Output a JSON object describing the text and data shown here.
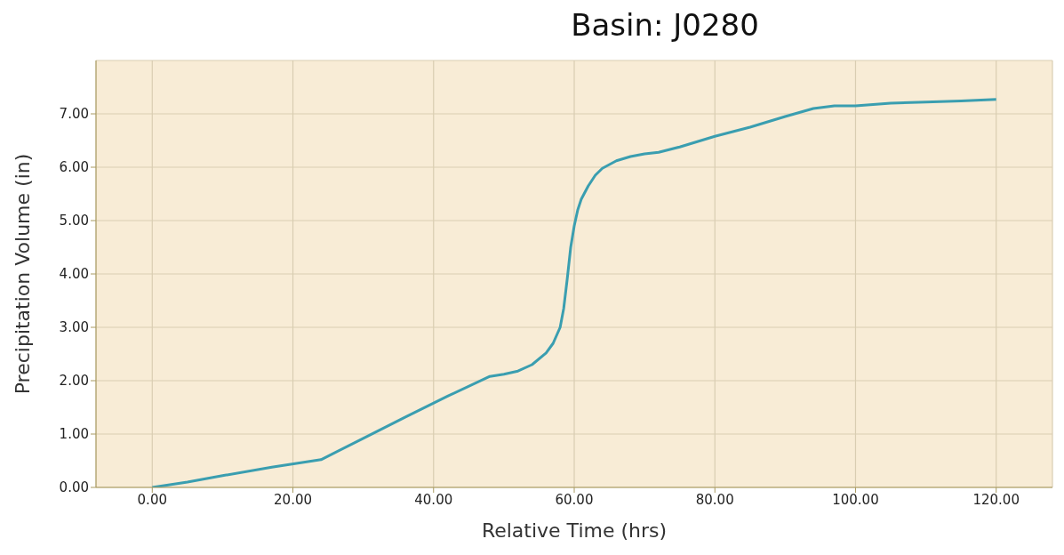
{
  "chart_data": {
    "type": "line",
    "title": "Basin: J0280",
    "xlabel": "Relative Time (hrs)",
    "ylabel": "Precipitation Volume (in)",
    "x": [
      0,
      5,
      10,
      17,
      24,
      30,
      36,
      42,
      48,
      50,
      52,
      54,
      56,
      57,
      58,
      58.5,
      59,
      59.5,
      60,
      60.5,
      61,
      62,
      63,
      64,
      66,
      68,
      70,
      72,
      75,
      80,
      85,
      90,
      94,
      97,
      100,
      105,
      110,
      115,
      120
    ],
    "series": [
      {
        "color": "#3a9eb0",
        "values": [
          0,
          0.1,
          0.22,
          0.38,
          0.52,
          0.92,
          1.32,
          1.71,
          2.08,
          2.12,
          2.18,
          2.3,
          2.52,
          2.7,
          3.0,
          3.35,
          3.9,
          4.5,
          4.9,
          5.2,
          5.4,
          5.65,
          5.85,
          5.98,
          6.12,
          6.2,
          6.25,
          6.28,
          6.38,
          6.58,
          6.75,
          6.95,
          7.1,
          7.15,
          7.15,
          7.2,
          7.22,
          7.24,
          7.27
        ]
      }
    ],
    "xlim": [
      -8,
      128
    ],
    "ylim": [
      0,
      8
    ],
    "xticks": [
      {
        "value": 0,
        "label": "0.00"
      },
      {
        "value": 20,
        "label": "20.00"
      },
      {
        "value": 40,
        "label": "40.00"
      },
      {
        "value": 60,
        "label": "60.00"
      },
      {
        "value": 80,
        "label": "80.00"
      },
      {
        "value": 100,
        "label": "100.00"
      },
      {
        "value": 120,
        "label": "120.00"
      }
    ],
    "yticks": [
      {
        "value": 0,
        "label": "0.00"
      },
      {
        "value": 1,
        "label": "1.00"
      },
      {
        "value": 2,
        "label": "2.00"
      },
      {
        "value": 3,
        "label": "3.00"
      },
      {
        "value": 4,
        "label": "4.00"
      },
      {
        "value": 5,
        "label": "5.00"
      },
      {
        "value": 6,
        "label": "6.00"
      },
      {
        "value": 7,
        "label": "7.00"
      }
    ],
    "grid": true,
    "marker": "none",
    "line_style": "solid",
    "legend": false
  }
}
